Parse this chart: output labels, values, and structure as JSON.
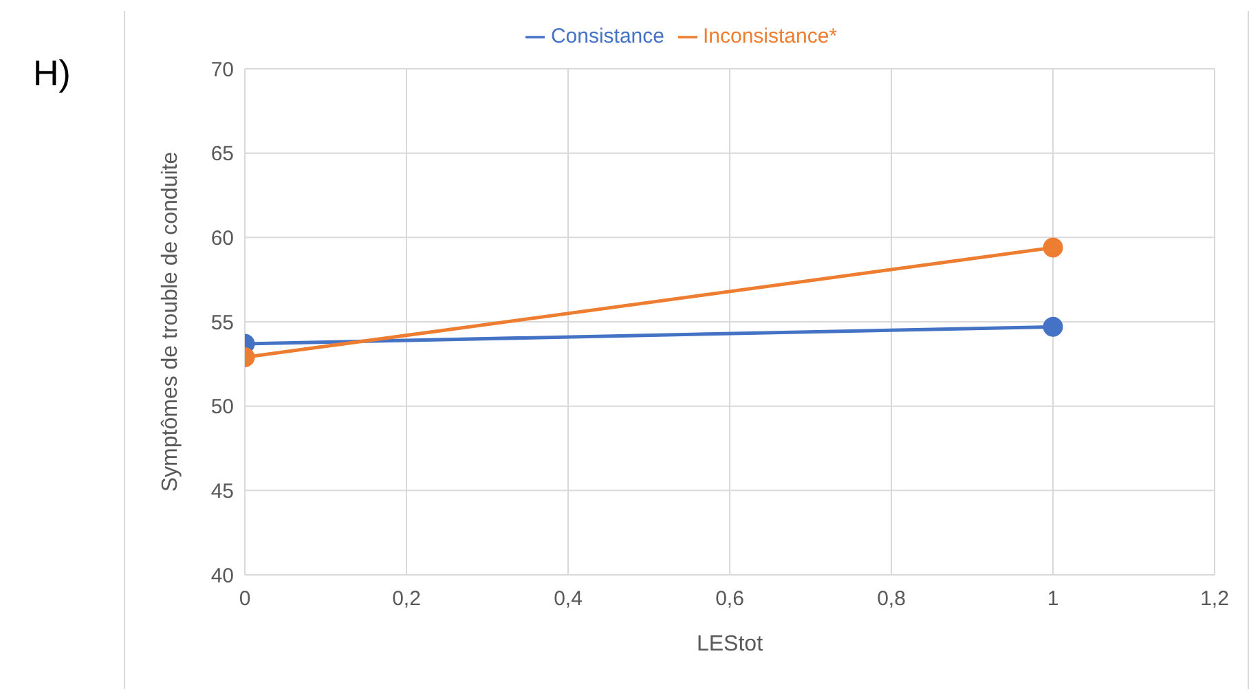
{
  "chart_data": {
    "type": "line",
    "xlabel": "LEStot",
    "ylabel": "Symptômes de trouble de conduite",
    "annotations": [
      "H)"
    ],
    "x": [
      0,
      1
    ],
    "series": [
      {
        "name": "Consistance",
        "color": "#4472c4",
        "values": [
          53.7,
          54.7
        ]
      },
      {
        "name": "Inconsistance*",
        "color": "#ed7d31",
        "values": [
          52.9,
          59.4
        ]
      }
    ],
    "xlim": [
      0,
      1.2
    ],
    "xticks": [
      0,
      {
        "value": 0.2,
        "label": "0,2"
      },
      {
        "value": 0.4,
        "label": "0,4"
      },
      {
        "value": 0.6,
        "label": "0,6"
      },
      {
        "value": 0.8,
        "label": "0,8"
      },
      1,
      {
        "value": 1.2,
        "label": "1,2"
      }
    ],
    "ylim": [
      40,
      70
    ],
    "yticks": [
      40,
      45,
      50,
      55,
      60,
      65,
      70
    ],
    "grid": true,
    "legend": "top",
    "marker": "circle",
    "line_style": "solid"
  }
}
